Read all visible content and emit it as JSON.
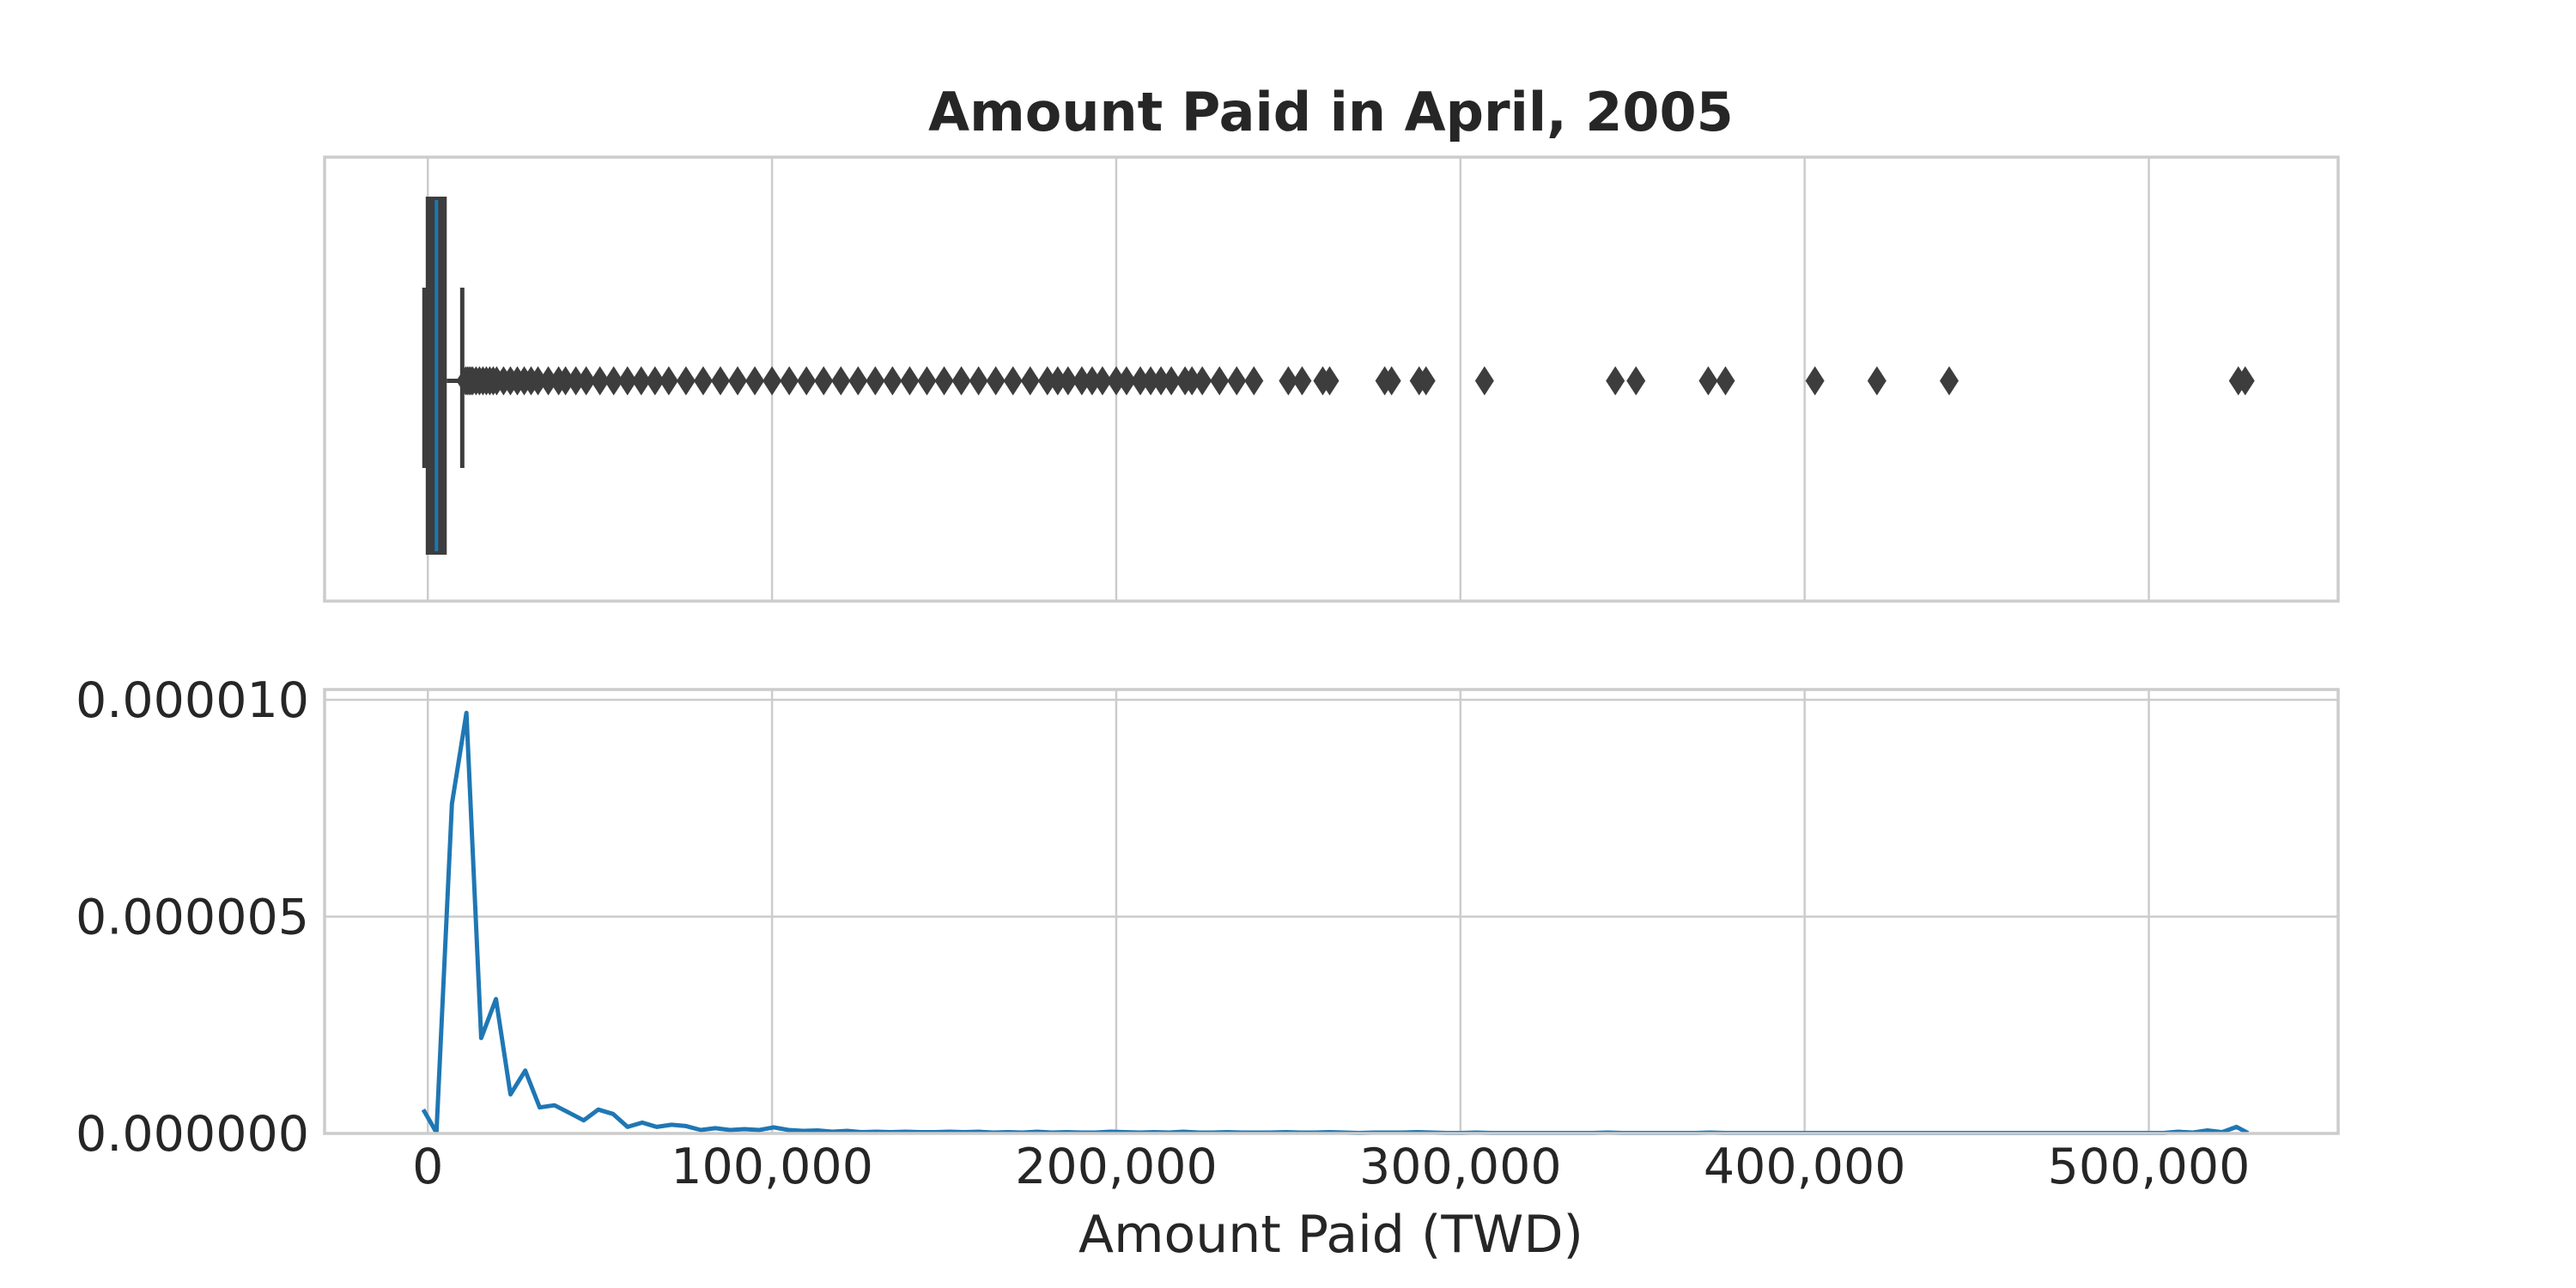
{
  "chart_data": [
    {
      "type": "box",
      "title": "Amount Paid in April, 2005",
      "xlim": [
        -30000,
        555000
      ],
      "xticks": [
        0,
        100000,
        200000,
        300000,
        400000,
        500000
      ],
      "box": {
        "q1": 390,
        "median": 2500,
        "q3": 4000,
        "whisker_low": 0,
        "whisker_high": 10000,
        "color": "#3d3d3d",
        "median_color": "#1f77b4"
      },
      "outliers": [
        11000,
        11500,
        12000,
        12500,
        13000,
        14000,
        15000,
        16000,
        17000,
        18000,
        19000,
        20000,
        22000,
        24000,
        26000,
        28000,
        30000,
        32000,
        35000,
        38000,
        40000,
        43000,
        46000,
        50000,
        54000,
        58000,
        62000,
        66000,
        70000,
        75000,
        80000,
        85000,
        90000,
        95000,
        100000,
        105000,
        110000,
        115000,
        120000,
        125000,
        130000,
        135000,
        140000,
        145000,
        150000,
        155000,
        160000,
        165000,
        170000,
        175000,
        180000,
        183000,
        186000,
        190000,
        193000,
        196000,
        200000,
        203000,
        207000,
        210000,
        213000,
        216000,
        220000,
        222000,
        225000,
        230000,
        235000,
        240000,
        250000,
        254000,
        260000,
        262000,
        278000,
        280000,
        288000,
        290000,
        307000,
        345000,
        351000,
        372000,
        377000,
        403000,
        421000,
        442000,
        526000,
        528000
      ]
    },
    {
      "type": "line",
      "xlabel": "Amount Paid (TWD)",
      "xlim": [
        -30000,
        555000
      ],
      "ylim": [
        0,
        1.01e-05
      ],
      "xticks": [
        0,
        100000,
        200000,
        300000,
        400000,
        500000
      ],
      "xtick_labels": [
        "0",
        "100,000",
        "200,000",
        "300,000",
        "400,000",
        "500,000"
      ],
      "yticks": [
        0,
        5e-06,
        1e-05
      ],
      "ytick_labels": [
        "0.000000",
        "0.000005",
        "0.000010"
      ],
      "series": [
        {
          "color": "#1f77b4",
          "x": [
            -1300,
            2500,
            7000,
            11200,
            15500,
            19800,
            24000,
            28300,
            32500,
            36800,
            41000,
            45300,
            49500,
            53800,
            58000,
            62300,
            66500,
            70800,
            75000,
            79300,
            83500,
            87800,
            92000,
            96300,
            100500,
            104800,
            109000,
            113300,
            117500,
            121800,
            126000,
            130300,
            134500,
            138800,
            143000,
            147300,
            151500,
            155800,
            160000,
            164300,
            168500,
            172800,
            177000,
            181300,
            185500,
            189800,
            194000,
            198300,
            202500,
            206800,
            211000,
            215300,
            219500,
            223800,
            228000,
            232300,
            236500,
            240800,
            245000,
            249300,
            253500,
            257800,
            262000,
            266300,
            270500,
            274800,
            279000,
            283300,
            287500,
            291800,
            296000,
            300300,
            304500,
            308800,
            313000,
            317300,
            321500,
            325800,
            330000,
            334300,
            338500,
            342800,
            347000,
            351300,
            355500,
            359800,
            364000,
            368300,
            372500,
            376800,
            381000,
            385300,
            389500,
            393800,
            398000,
            402300,
            406500,
            410800,
            415000,
            419300,
            423500,
            427800,
            432000,
            436300,
            440500,
            444800,
            449000,
            453300,
            457500,
            461800,
            466000,
            470300,
            474500,
            478800,
            483000,
            487300,
            491500,
            495800,
            500000,
            504300,
            508500,
            512800,
            517000,
            521300,
            525500,
            528800
          ],
          "y": [
            5.5e-07,
            2e-08,
            7.6e-06,
            9.7e-06,
            2.2e-06,
            3.1e-06,
            9e-07,
            1.45e-06,
            6e-07,
            6.5e-07,
            4.8e-07,
            3e-07,
            5.5e-07,
            4.5e-07,
            1.5e-07,
            2.5e-07,
            1.5e-07,
            2e-07,
            1.7e-07,
            8e-08,
            1.2e-07,
            8e-08,
            1e-07,
            8e-08,
            1.4e-07,
            8e-08,
            6e-08,
            7e-08,
            4e-08,
            6e-08,
            3e-08,
            4e-08,
            3e-08,
            4e-08,
            3e-08,
            3e-08,
            4e-08,
            3e-08,
            4e-08,
            2e-08,
            3e-08,
            2e-08,
            4e-08,
            2e-08,
            3e-08,
            2e-08,
            2e-08,
            4e-08,
            3e-08,
            2e-08,
            3e-08,
            2e-08,
            4e-08,
            2e-08,
            2e-08,
            3e-08,
            2e-08,
            2e-08,
            2e-08,
            3e-08,
            2e-08,
            2e-08,
            3e-08,
            2e-08,
            1e-08,
            2e-08,
            2e-08,
            2e-08,
            3e-08,
            2e-08,
            1e-08,
            1e-08,
            2e-08,
            1e-08,
            1e-08,
            1e-08,
            1e-08,
            1e-08,
            1e-08,
            1e-08,
            1e-08,
            2e-08,
            1e-08,
            1e-08,
            1e-08,
            1e-08,
            1e-08,
            1e-08,
            2e-08,
            1e-08,
            1e-08,
            1e-08,
            1e-08,
            1e-08,
            1e-08,
            1e-08,
            1e-08,
            1e-08,
            1e-08,
            1e-08,
            1e-08,
            1e-08,
            1e-08,
            1e-08,
            1e-08,
            1e-08,
            1e-08,
            1e-08,
            1e-08,
            1e-08,
            1e-08,
            1e-08,
            1e-08,
            1e-08,
            1e-08,
            1e-08,
            1e-08,
            1e-08,
            1e-08,
            1e-08,
            4e-08,
            2e-08,
            7e-08,
            3e-08,
            1.5e-07,
            1e-08
          ]
        }
      ]
    }
  ]
}
